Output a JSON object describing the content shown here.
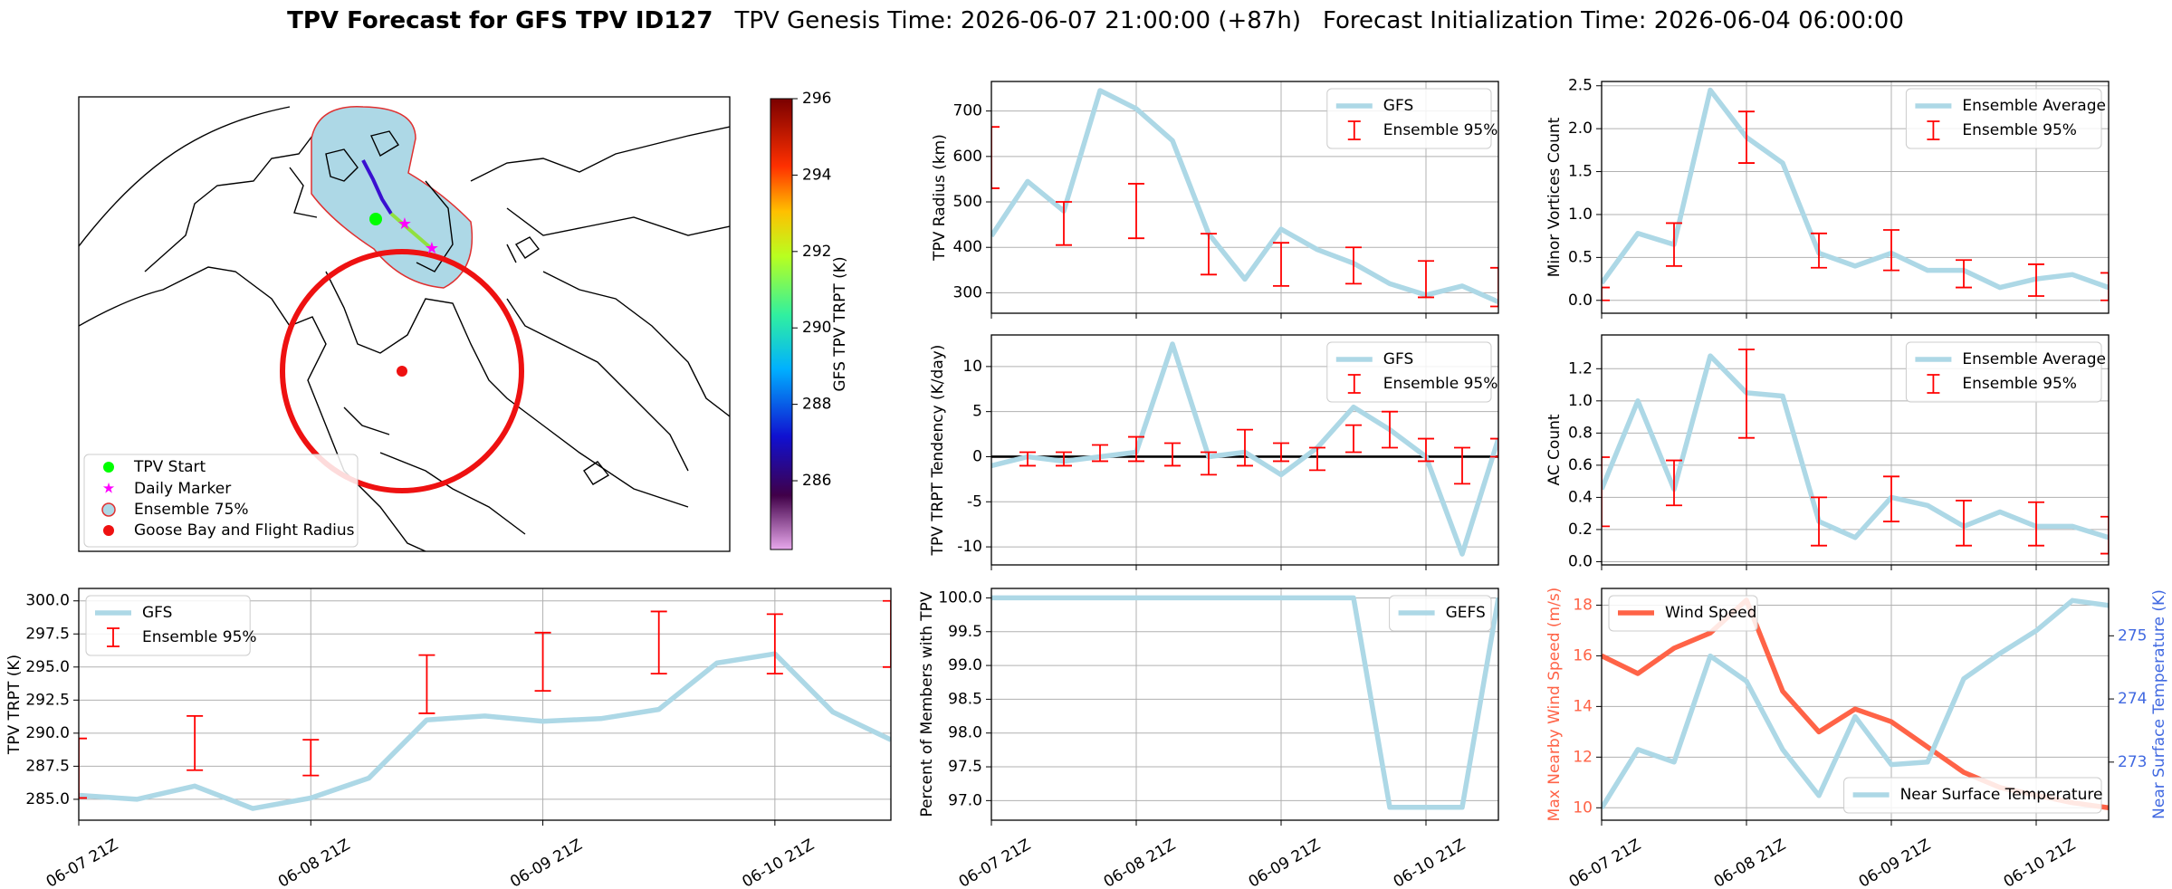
{
  "header": {
    "title": "TPV Forecast for GFS TPV ID127",
    "genesis": "TPV Genesis Time: 2026-06-07 21:00:00 (+87h)",
    "init": "Forecast Initialization Time: 2026-06-04 06:00:00"
  },
  "chart_data": [
    {
      "type": "map",
      "legend": [
        "TPV Start",
        "Daily Marker",
        "Ensemble 75%",
        "Goose Bay and Flight Radius"
      ],
      "colorbar": {
        "label": "GFS TPV TRPT (K)",
        "lim": [
          284.2,
          296
        ],
        "ticks": [
          286,
          288,
          290,
          292,
          294,
          296
        ]
      }
    },
    {
      "type": "line",
      "ylabel": "TPV Radius (km)",
      "x": [
        0,
        6,
        12,
        18,
        24,
        30,
        36,
        42,
        48,
        54,
        60,
        66,
        72,
        78,
        84
      ],
      "xlim": [
        0,
        84
      ],
      "xticks": [
        0,
        24,
        48,
        72
      ],
      "xticklabels": false,
      "ylim": [
        255,
        765
      ],
      "yticks": [
        300,
        400,
        500,
        600,
        700
      ],
      "grid": true,
      "legend": "upper right",
      "series": [
        {
          "name": "GFS",
          "color": "#add8e6",
          "values": [
            425,
            545,
            480,
            745,
            705,
            635,
            430,
            330,
            440,
            395,
            365,
            320,
            295,
            315,
            280
          ]
        }
      ],
      "errorbars": {
        "name": "Ensemble 95%",
        "color": "#ff0000",
        "x": [
          0,
          12,
          24,
          36,
          48,
          60,
          72,
          84
        ],
        "low": [
          530,
          405,
          420,
          340,
          315,
          320,
          290,
          270
        ],
        "high": [
          665,
          500,
          540,
          430,
          410,
          400,
          370,
          355
        ]
      }
    },
    {
      "type": "line",
      "ylabel": "TPV TRPT Tendency (K/day)",
      "x": [
        0,
        6,
        12,
        18,
        24,
        30,
        36,
        42,
        48,
        54,
        60,
        66,
        72,
        78,
        84
      ],
      "xlim": [
        0,
        84
      ],
      "xticks": [
        0,
        24,
        48,
        72
      ],
      "xticklabels": false,
      "ylim": [
        -12,
        13.5
      ],
      "yticks": [
        -10,
        -5,
        0,
        5,
        10
      ],
      "grid": true,
      "legend": "upper right",
      "hline": 0,
      "series": [
        {
          "name": "GFS",
          "color": "#add8e6",
          "values": [
            -1,
            0,
            -0.5,
            0,
            0.5,
            12.5,
            0,
            0.5,
            -2,
            1,
            5.5,
            3,
            0,
            -10.8,
            2
          ]
        }
      ],
      "errorbars": {
        "name": "Ensemble 95%",
        "color": "#ff0000",
        "x": [
          6,
          12,
          18,
          24,
          30,
          36,
          42,
          48,
          54,
          60,
          66,
          72,
          78,
          84
        ],
        "low": [
          -1,
          -1,
          -0.5,
          -0.5,
          -1,
          -2,
          -1,
          -0.5,
          -1.5,
          0.5,
          1,
          -0.5,
          -3,
          0
        ],
        "high": [
          0.5,
          0.5,
          1.3,
          2.2,
          1.5,
          0.5,
          3,
          1.5,
          1,
          3.5,
          5,
          2,
          1,
          2
        ]
      }
    },
    {
      "type": "line",
      "ylabel": "Percent of Members with TPV",
      "x": [
        0,
        6,
        12,
        18,
        24,
        30,
        36,
        42,
        48,
        54,
        60,
        66,
        72,
        78,
        84
      ],
      "xlim": [
        0,
        84
      ],
      "xticks": [
        {
          "value": 0,
          "label": "06-07 21Z"
        },
        {
          "value": 24,
          "label": "06-08 21Z"
        },
        {
          "value": 48,
          "label": "06-09 21Z"
        },
        {
          "value": 72,
          "label": "06-10 21Z"
        }
      ],
      "ylim": [
        96.71,
        100.14
      ],
      "yticks": [
        {
          "value": 97,
          "label": "97.0"
        },
        97.5,
        {
          "value": 98,
          "label": "98.0"
        },
        98.5,
        {
          "value": 99,
          "label": "99.0"
        },
        99.5,
        {
          "value": 100,
          "label": "100.0"
        }
      ],
      "grid": true,
      "legend": "upper right",
      "series": [
        {
          "name": "GEFS",
          "color": "#add8e6",
          "values": [
            100,
            100,
            100,
            100,
            100,
            100,
            100,
            100,
            100,
            100,
            100,
            96.9,
            96.9,
            96.9,
            100
          ]
        }
      ]
    },
    {
      "type": "line",
      "ylabel": "Minor Vortices Count",
      "x": [
        0,
        6,
        12,
        18,
        24,
        30,
        36,
        42,
        48,
        54,
        60,
        66,
        72,
        78,
        84
      ],
      "xlim": [
        0,
        84
      ],
      "xticks": [
        0,
        24,
        48,
        72
      ],
      "xticklabels": false,
      "ylim": [
        -0.15,
        2.55
      ],
      "yticks": [
        {
          "value": 0,
          "label": "0.0"
        },
        0.5,
        {
          "value": 1,
          "label": "1.0"
        },
        1.5,
        {
          "value": 2,
          "label": "2.0"
        },
        2.5
      ],
      "grid": true,
      "legend": "upper right",
      "series": [
        {
          "name": "Ensemble Average",
          "color": "#add8e6",
          "values": [
            0.2,
            0.78,
            0.65,
            2.45,
            1.9,
            1.6,
            0.55,
            0.4,
            0.55,
            0.35,
            0.35,
            0.15,
            0.25,
            0.3,
            0.15
          ]
        }
      ],
      "errorbars": {
        "name": "Ensemble 95%",
        "color": "#ff0000",
        "x": [
          0,
          12,
          24,
          36,
          48,
          60,
          72,
          84
        ],
        "low": [
          0,
          0.4,
          1.6,
          0.38,
          0.35,
          0.15,
          0.05,
          0
        ],
        "high": [
          0.15,
          0.9,
          2.2,
          0.78,
          0.82,
          0.47,
          0.42,
          0.32
        ]
      }
    },
    {
      "type": "line",
      "ylabel": "AC Count",
      "x": [
        0,
        6,
        12,
        18,
        24,
        30,
        36,
        42,
        48,
        54,
        60,
        66,
        72,
        78,
        84
      ],
      "xlim": [
        0,
        84
      ],
      "xticks": [
        0,
        24,
        48,
        72
      ],
      "xticklabels": false,
      "ylim": [
        -0.02,
        1.41
      ],
      "yticks": [
        {
          "value": 0,
          "label": "0.0"
        },
        0.2,
        0.4,
        0.6,
        0.8,
        {
          "value": 1,
          "label": "1.0"
        },
        1.2
      ],
      "grid": true,
      "legend": "upper right",
      "series": [
        {
          "name": "Ensemble Average",
          "color": "#add8e6",
          "values": [
            0.45,
            1.0,
            0.45,
            1.28,
            1.05,
            1.03,
            0.25,
            0.15,
            0.4,
            0.35,
            0.22,
            0.31,
            0.22,
            0.22,
            0.15
          ]
        }
      ],
      "errorbars": {
        "name": "Ensemble 95%",
        "color": "#ff0000",
        "x": [
          0,
          12,
          24,
          36,
          48,
          60,
          72,
          84
        ],
        "low": [
          0.22,
          0.35,
          0.77,
          0.1,
          0.25,
          0.1,
          0.1,
          0.05
        ],
        "high": [
          0.65,
          0.63,
          1.32,
          0.4,
          0.53,
          0.38,
          0.37,
          0.28
        ]
      }
    },
    {
      "type": "line",
      "ylabel": "Max Nearby Wind Speed (m/s)",
      "y2label": "Near Surface Temperature (K)",
      "ycolor": "#ff6347",
      "y2color": "#4169e1",
      "x": [
        0,
        6,
        12,
        18,
        24,
        30,
        36,
        42,
        48,
        54,
        60,
        66,
        72,
        78,
        84
      ],
      "xlim": [
        0,
        84
      ],
      "xticks": [
        {
          "value": 0,
          "label": "06-07 21Z"
        },
        {
          "value": 24,
          "label": "06-08 21Z"
        },
        {
          "value": 48,
          "label": "06-09 21Z"
        },
        {
          "value": 72,
          "label": "06-10 21Z"
        }
      ],
      "ylim": [
        9.51,
        18.66
      ],
      "yticks": [
        10,
        12,
        14,
        16,
        18
      ],
      "y2lim": [
        272.08,
        275.75
      ],
      "y2ticks": [
        273,
        274,
        275
      ],
      "grid": true,
      "series": [
        {
          "name": "Wind Speed",
          "color": "#ff6347",
          "legend": "upper left",
          "values": [
            16.0,
            15.3,
            16.3,
            16.9,
            18.2,
            14.6,
            13.0,
            13.9,
            13.4,
            12.4,
            11.4,
            10.8,
            10.5,
            10.2,
            10.0
          ]
        },
        {
          "name": "Near Surface Temperature",
          "color": "#add8e6",
          "axis": "y2",
          "legend": "lower right",
          "values": [
            272.27,
            273.2,
            273.0,
            274.68,
            274.28,
            273.2,
            272.47,
            273.72,
            272.96,
            273.0,
            274.32,
            274.72,
            275.08,
            275.56,
            275.48
          ]
        }
      ]
    },
    {
      "type": "line",
      "ylabel": "TPV TRPT (K)",
      "x": [
        0,
        6,
        12,
        18,
        24,
        30,
        36,
        42,
        48,
        54,
        60,
        66,
        72,
        78,
        84
      ],
      "xlim": [
        0,
        84
      ],
      "xticks": [
        {
          "value": 0,
          "label": "06-07 21Z"
        },
        {
          "value": 24,
          "label": "06-08 21Z"
        },
        {
          "value": 48,
          "label": "06-09 21Z"
        },
        {
          "value": 72,
          "label": "06-10 21Z"
        }
      ],
      "ylim": [
        283.42,
        300.94
      ],
      "yticks": [
        {
          "value": 285,
          "label": "285.0"
        },
        287.5,
        {
          "value": 290,
          "label": "290.0"
        },
        292.5,
        {
          "value": 295,
          "label": "295.0"
        },
        297.5,
        {
          "value": 300,
          "label": "300.0"
        }
      ],
      "grid": true,
      "legend": "upper left",
      "series": [
        {
          "name": "GFS",
          "color": "#add8e6",
          "values": [
            285.3,
            285.0,
            286.0,
            284.3,
            285.1,
            286.6,
            291.0,
            291.3,
            290.9,
            291.1,
            291.8,
            295.3,
            296.0,
            291.6,
            289.5
          ]
        }
      ],
      "errorbars": {
        "name": "Ensemble 95%",
        "color": "#ff0000",
        "x": [
          0,
          12,
          24,
          36,
          48,
          60,
          72,
          84
        ],
        "low": [
          285.1,
          287.2,
          286.8,
          291.5,
          293.2,
          294.5,
          294.5,
          295.0
        ],
        "high": [
          289.6,
          291.3,
          289.5,
          295.9,
          297.6,
          299.2,
          299.0,
          300.0
        ]
      }
    }
  ]
}
